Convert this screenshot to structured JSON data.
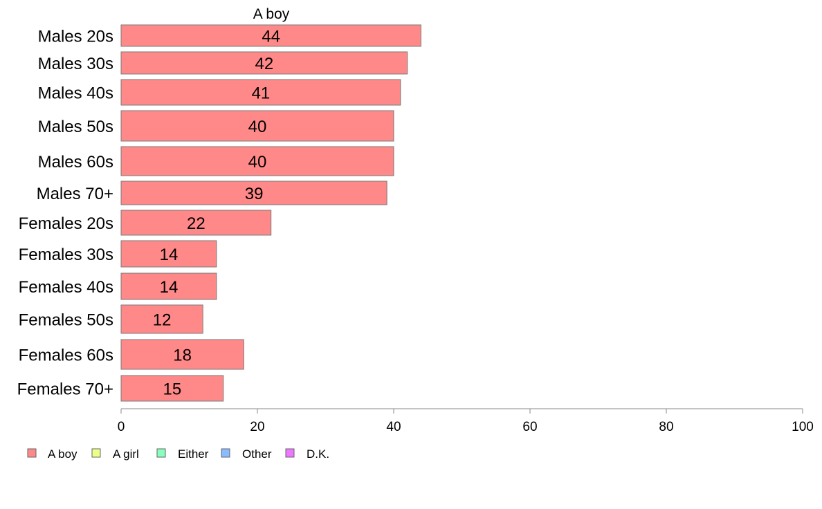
{
  "chart_data": {
    "type": "bar",
    "orientation": "horizontal",
    "title": "A boy",
    "xlim": [
      0,
      100
    ],
    "x_ticks": [
      0,
      20,
      40,
      60,
      80,
      100
    ],
    "grid": false,
    "legend_position": "bottom-left",
    "categories": [
      "Males 20s",
      "Males 30s",
      "Males 40s",
      "Males 50s",
      "Males 60s",
      "Males 70+",
      "Females 20s",
      "Females 30s",
      "Females 40s",
      "Females 50s",
      "Females 60s",
      "Females 70+"
    ],
    "series": [
      {
        "name": "A boy",
        "color": "#ff8888",
        "values": [
          44,
          42,
          41,
          40,
          40,
          39,
          22,
          14,
          14,
          12,
          18,
          15
        ]
      }
    ],
    "legend": [
      {
        "label": "A boy",
        "color": "#ff8888"
      },
      {
        "label": "A girl",
        "color": "#eeff88"
      },
      {
        "label": "Either",
        "color": "#88ffbb"
      },
      {
        "label": "Other",
        "color": "#88bbff"
      },
      {
        "label": "D.K.",
        "color": "#ee77ff"
      }
    ]
  }
}
